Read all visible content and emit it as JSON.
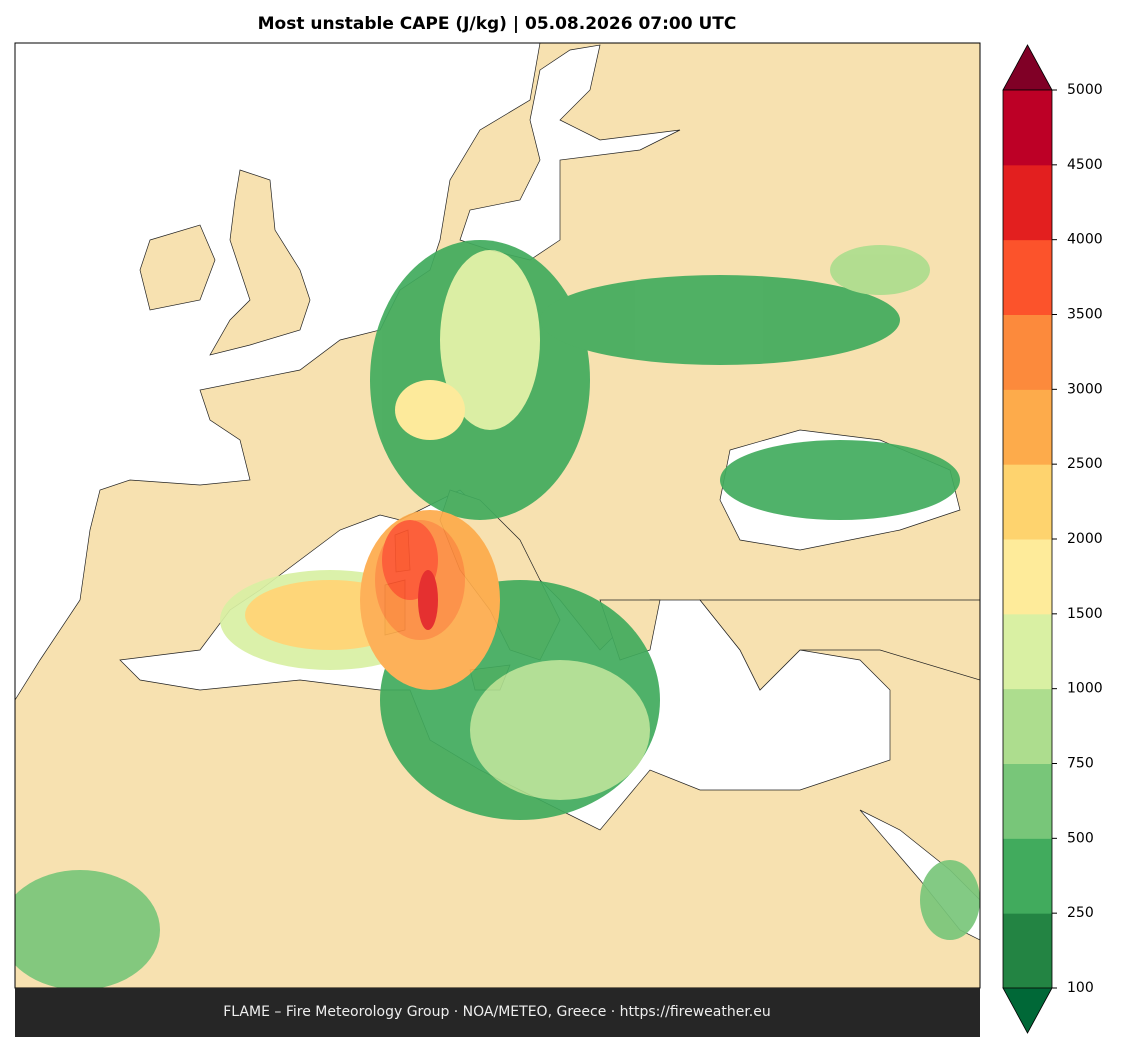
{
  "title": "Most unstable CAPE (J/kg)  |  05.08.2026 07:00 UTC",
  "colorbar": {
    "ticks": [
      100,
      250,
      500,
      750,
      1000,
      1500,
      2000,
      2500,
      3000,
      3500,
      4000,
      4500,
      5000
    ],
    "colors": [
      "#238443",
      "#41ab5d",
      "#78c679",
      "#addd8e",
      "#d9f0a3",
      "#feeb9a",
      "#fed36e",
      "#fdab4b",
      "#fc8a3c",
      "#fc532b",
      "#e31f1f",
      "#bd0026"
    ],
    "under_color": "#006837",
    "over_color": "#800026"
  },
  "footer": "FLAME – Fire Meteorology Group · NOA/METEO, Greece · https://fireweather.eu"
}
